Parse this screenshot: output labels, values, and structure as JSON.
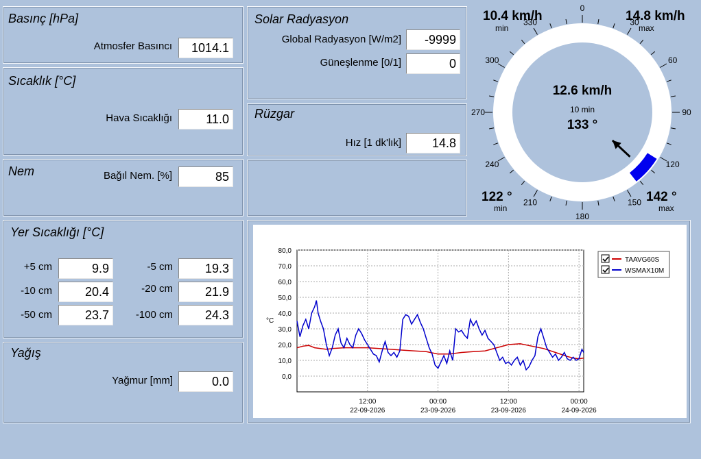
{
  "pressure": {
    "title": "Basınç [hPa]",
    "label": "Atmosfer Basıncı",
    "value": "1014.1"
  },
  "temperature": {
    "title": "Sıcaklık [°C]",
    "label": "Hava Sıcaklığı",
    "value": "11.0"
  },
  "humidity": {
    "title": "Nem",
    "label": "Bağıl Nem. [%]",
    "value": "85"
  },
  "solar": {
    "title": "Solar Radyasyon",
    "global_label": "Global Radyasyon [W/m2]",
    "global_value": "-9999",
    "sun_label": "Güneşlenme [0/1]",
    "sun_value": "0"
  },
  "wind": {
    "title": "Rüzgar",
    "speed_label": "Hız [1 dk'lık]",
    "speed_value": "14.8"
  },
  "soil": {
    "title": "Yer Sıcaklığı [°C]",
    "items": [
      {
        "label": "+5 cm",
        "value": "9.9"
      },
      {
        "label": "-5 cm",
        "value": "19.3"
      },
      {
        "label": "-10 cm",
        "value": "20.4"
      },
      {
        "label": "-20 cm",
        "value": "21.9"
      },
      {
        "label": "-50 cm",
        "value": "23.7"
      },
      {
        "label": "-100 cm",
        "value": "24.3"
      }
    ]
  },
  "rain": {
    "title": "Yağış",
    "label": "Yağmur [mm]",
    "value": "0.0"
  },
  "compass": {
    "min_speed": "10.4 km/h",
    "min_speed_label": "min",
    "max_speed": "14.8 km/h",
    "max_speed_label": "max",
    "center_speed": "12.6 km/h",
    "center_period": "10 min",
    "center_dir": "133 °",
    "min_dir": "122 °",
    "min_dir_label": "min",
    "max_dir": "142 °",
    "max_dir_label": "max",
    "arrow_direction_deg": 133,
    "sector_min_deg": 122,
    "sector_max_deg": 142,
    "degree_labels": [
      "0",
      "30",
      "60",
      "90",
      "120",
      "150",
      "180",
      "210",
      "240",
      "270",
      "300",
      "330"
    ],
    "colors": {
      "sector": "#0000ee",
      "ring": "#ffffff",
      "face": "#aec2dc"
    }
  },
  "chart_data": {
    "type": "line",
    "ylabel": "°C",
    "ylim": [
      -10,
      80
    ],
    "yticks": [
      "80,0",
      "70,0",
      "60,0",
      "50,0",
      "40,0",
      "30,0",
      "20,0",
      "10,0",
      "0,0"
    ],
    "xticks": [
      {
        "time": "12:00",
        "date": "22-09-2026",
        "hour": 12
      },
      {
        "time": "00:00",
        "date": "23-09-2026",
        "hour": 24
      },
      {
        "time": "12:00",
        "date": "23-09-2026",
        "hour": 36
      },
      {
        "time": "00:00",
        "date": "24-09-2026",
        "hour": 48
      }
    ],
    "xlim_hours": [
      0,
      48.8
    ],
    "grid": true,
    "legend_position": "top-right",
    "series": [
      {
        "name": "TAAVG60S",
        "color": "#cc0000",
        "checked": true,
        "points": [
          [
            0,
            18
          ],
          [
            1,
            19
          ],
          [
            2,
            19.5
          ],
          [
            3,
            18
          ],
          [
            4,
            17.5
          ],
          [
            5,
            17
          ],
          [
            6,
            17.5
          ],
          [
            8,
            18
          ],
          [
            10,
            18
          ],
          [
            12,
            18
          ],
          [
            14,
            17.5
          ],
          [
            16,
            17
          ],
          [
            18,
            16.5
          ],
          [
            20,
            16
          ],
          [
            22,
            15.5
          ],
          [
            24,
            14
          ],
          [
            26,
            14
          ],
          [
            28,
            15
          ],
          [
            30,
            15.5
          ],
          [
            32,
            16
          ],
          [
            34,
            18
          ],
          [
            36,
            20
          ],
          [
            38,
            20.5
          ],
          [
            40,
            19
          ],
          [
            42,
            17.5
          ],
          [
            44,
            15
          ],
          [
            46,
            12.5
          ],
          [
            47,
            11.5
          ],
          [
            48,
            11
          ],
          [
            48.8,
            11.5
          ]
        ]
      },
      {
        "name": "WSMAX10M",
        "color": "#0000cc",
        "checked": true,
        "points": [
          [
            0,
            35
          ],
          [
            0.5,
            25
          ],
          [
            1,
            32
          ],
          [
            1.5,
            36
          ],
          [
            2,
            30
          ],
          [
            2.5,
            40
          ],
          [
            3,
            44
          ],
          [
            3.3,
            48
          ],
          [
            3.6,
            40
          ],
          [
            4,
            35
          ],
          [
            4.5,
            30
          ],
          [
            5,
            20
          ],
          [
            5.5,
            13
          ],
          [
            6,
            18
          ],
          [
            6.5,
            26
          ],
          [
            7,
            30
          ],
          [
            7.5,
            21
          ],
          [
            8,
            18
          ],
          [
            8.5,
            24
          ],
          [
            9,
            20
          ],
          [
            9.5,
            18
          ],
          [
            10,
            26
          ],
          [
            10.5,
            30
          ],
          [
            11,
            27
          ],
          [
            11.5,
            23
          ],
          [
            12,
            20
          ],
          [
            12.5,
            17
          ],
          [
            13,
            14
          ],
          [
            13.5,
            13
          ],
          [
            14,
            9
          ],
          [
            14.5,
            16
          ],
          [
            15,
            22
          ],
          [
            15.5,
            15
          ],
          [
            16,
            13
          ],
          [
            16.5,
            15
          ],
          [
            17,
            12
          ],
          [
            17.5,
            16
          ],
          [
            18,
            36
          ],
          [
            18.5,
            39
          ],
          [
            19,
            38
          ],
          [
            19.5,
            33
          ],
          [
            20,
            36
          ],
          [
            20.5,
            39
          ],
          [
            21,
            34
          ],
          [
            21.5,
            30
          ],
          [
            22,
            24
          ],
          [
            22.5,
            18
          ],
          [
            23,
            14
          ],
          [
            23.5,
            7
          ],
          [
            24,
            5
          ],
          [
            24.5,
            9
          ],
          [
            25,
            13
          ],
          [
            25.5,
            8
          ],
          [
            26,
            16
          ],
          [
            26.5,
            10
          ],
          [
            27,
            30
          ],
          [
            27.5,
            28
          ],
          [
            28,
            29
          ],
          [
            28.5,
            26
          ],
          [
            29,
            24
          ],
          [
            29.5,
            36
          ],
          [
            30,
            32
          ],
          [
            30.5,
            35
          ],
          [
            31,
            30
          ],
          [
            31.5,
            26
          ],
          [
            32,
            29
          ],
          [
            32.5,
            24
          ],
          [
            33,
            22
          ],
          [
            33.5,
            20
          ],
          [
            34,
            15
          ],
          [
            34.5,
            10
          ],
          [
            35,
            12
          ],
          [
            35.5,
            8
          ],
          [
            36,
            9
          ],
          [
            36.5,
            7
          ],
          [
            37,
            10
          ],
          [
            37.5,
            12
          ],
          [
            38,
            7
          ],
          [
            38.5,
            10
          ],
          [
            39,
            4
          ],
          [
            39.5,
            6
          ],
          [
            40,
            10
          ],
          [
            40.5,
            13
          ],
          [
            41,
            25
          ],
          [
            41.5,
            30
          ],
          [
            42,
            24
          ],
          [
            42.5,
            18
          ],
          [
            43,
            15
          ],
          [
            43.5,
            12
          ],
          [
            44,
            14
          ],
          [
            44.5,
            10
          ],
          [
            45,
            12
          ],
          [
            45.5,
            15
          ],
          [
            46,
            11
          ],
          [
            46.5,
            10
          ],
          [
            47,
            12
          ],
          [
            47.5,
            10
          ],
          [
            48,
            11
          ],
          [
            48.5,
            17
          ],
          [
            48.8,
            15
          ]
        ]
      }
    ]
  }
}
